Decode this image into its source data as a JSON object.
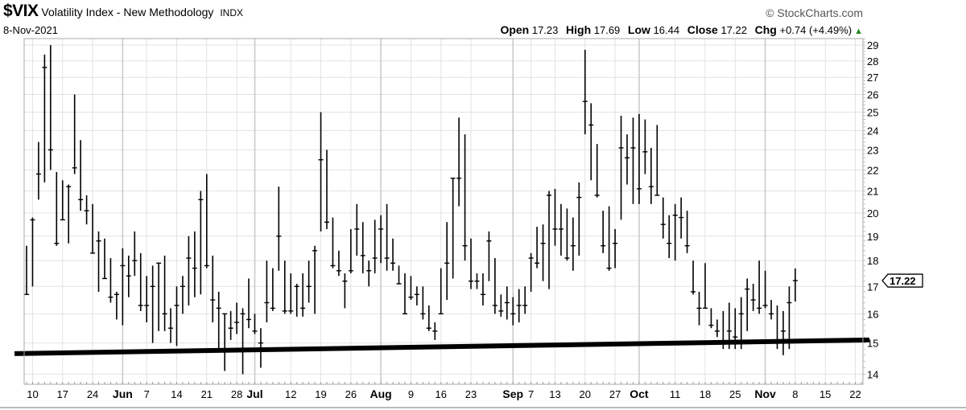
{
  "header": {
    "symbol": "$VIX",
    "name": "Volatility Index - New Methodology",
    "exchange": "INDX",
    "date": "8-Nov-2021",
    "copyright": "© StockCharts.com",
    "open_label": "Open",
    "open": "17.23",
    "high_label": "High",
    "high": "17.69",
    "low_label": "Low",
    "low": "16.44",
    "close_label": "Close",
    "close": "17.22",
    "chg_label": "Chg",
    "chg": "+0.74 (+4.49%)",
    "chg_icon": "triangle-up-icon",
    "chg_color": "#2a8a2a"
  },
  "chart_data": {
    "type": "ohlc",
    "yscale": "log",
    "ylim": [
      13.69,
      29.42
    ],
    "grid": true,
    "bar_color": "#000000",
    "last_price_tag": "17.22",
    "y_ticks": [
      "14",
      "15",
      "16",
      "17",
      "18",
      "19",
      "20",
      "21",
      "22",
      "23",
      "24",
      "25",
      "26",
      "27",
      "28",
      "29"
    ],
    "x_ticks": [
      {
        "date": "2021-05-10",
        "label": "10"
      },
      {
        "date": "2021-05-17",
        "label": "17"
      },
      {
        "date": "2021-05-24",
        "label": "24"
      },
      {
        "date": "2021-06-01",
        "label": "Jun",
        "month": true
      },
      {
        "date": "2021-06-07",
        "label": "7"
      },
      {
        "date": "2021-06-14",
        "label": "14"
      },
      {
        "date": "2021-06-21",
        "label": "21"
      },
      {
        "date": "2021-06-28",
        "label": "28"
      },
      {
        "date": "2021-07-01",
        "label": "Jul",
        "month": true
      },
      {
        "date": "2021-07-12",
        "label": "12"
      },
      {
        "date": "2021-07-19",
        "label": "19"
      },
      {
        "date": "2021-07-26",
        "label": "26"
      },
      {
        "date": "2021-08-02",
        "label": "Aug",
        "month": true
      },
      {
        "date": "2021-08-09",
        "label": "9"
      },
      {
        "date": "2021-08-16",
        "label": "16"
      },
      {
        "date": "2021-08-23",
        "label": "23"
      },
      {
        "date": "2021-09-01",
        "label": "Sep",
        "month": true
      },
      {
        "date": "2021-09-07",
        "label": "7"
      },
      {
        "date": "2021-09-13",
        "label": "13"
      },
      {
        "date": "2021-09-20",
        "label": "20"
      },
      {
        "date": "2021-09-27",
        "label": "27"
      },
      {
        "date": "2021-10-01",
        "label": "Oct",
        "month": true
      },
      {
        "date": "2021-10-11",
        "label": "11"
      },
      {
        "date": "2021-10-18",
        "label": "18"
      },
      {
        "date": "2021-10-25",
        "label": "25"
      },
      {
        "date": "2021-11-01",
        "label": "Nov",
        "month": true
      },
      {
        "date": "2021-11-08",
        "label": "8"
      },
      {
        "date": "2021-11-15",
        "label": "15"
      },
      {
        "date": "2021-11-22",
        "label": "22"
      }
    ],
    "trendline": {
      "start_value": 14.65,
      "end_value": 15.1,
      "color": "#000000"
    },
    "bars_fields": [
      "date",
      "high",
      "low",
      "close"
    ],
    "bars": [
      [
        "2021-05-07",
        18.6,
        16.7,
        16.7
      ],
      [
        "2021-05-10",
        19.8,
        17.0,
        19.7
      ],
      [
        "2021-05-11",
        23.4,
        20.6,
        21.8
      ],
      [
        "2021-05-12",
        28.4,
        21.4,
        27.6
      ],
      [
        "2021-05-13",
        29.0,
        22.0,
        23.0
      ],
      [
        "2021-05-14",
        21.9,
        18.6,
        18.7
      ],
      [
        "2021-05-17",
        21.5,
        19.7,
        19.7
      ],
      [
        "2021-05-18",
        21.3,
        18.7,
        21.2
      ],
      [
        "2021-05-19",
        26.0,
        21.8,
        22.1
      ],
      [
        "2021-05-20",
        23.5,
        20.1,
        20.6
      ],
      [
        "2021-05-21",
        20.8,
        19.5,
        20.1
      ],
      [
        "2021-05-24",
        20.4,
        18.3,
        18.3
      ],
      [
        "2021-05-25",
        19.2,
        16.8,
        18.8
      ],
      [
        "2021-05-26",
        18.9,
        17.3,
        17.3
      ],
      [
        "2021-05-27",
        18.1,
        16.4,
        16.6
      ],
      [
        "2021-05-28",
        16.8,
        15.8,
        16.7
      ],
      [
        "2021-06-01",
        18.5,
        15.6,
        17.8
      ],
      [
        "2021-06-02",
        18.2,
        16.6,
        17.4
      ],
      [
        "2021-06-03",
        19.2,
        17.4,
        18.0
      ],
      [
        "2021-06-04",
        18.3,
        16.1,
        16.3
      ],
      [
        "2021-06-07",
        17.4,
        15.7,
        16.3
      ],
      [
        "2021-06-08",
        17.8,
        15.0,
        17.0
      ],
      [
        "2021-06-09",
        17.9,
        15.4,
        17.9
      ],
      [
        "2021-06-10",
        18.2,
        15.4,
        16.0
      ],
      [
        "2021-06-11",
        16.2,
        15.0,
        15.5
      ],
      [
        "2021-06-14",
        17.0,
        14.9,
        16.3
      ],
      [
        "2021-06-15",
        17.4,
        16.0,
        17.0
      ],
      [
        "2021-06-16",
        19.0,
        16.3,
        18.1
      ],
      [
        "2021-06-17",
        19.2,
        16.6,
        17.7
      ],
      [
        "2021-06-18",
        21.0,
        16.7,
        20.6
      ],
      [
        "2021-06-21",
        21.8,
        17.7,
        17.8
      ],
      [
        "2021-06-22",
        18.2,
        15.7,
        16.5
      ],
      [
        "2021-06-23",
        16.8,
        14.8,
        16.2
      ],
      [
        "2021-06-24",
        16.0,
        14.1,
        16.0
      ],
      [
        "2021-06-25",
        16.1,
        15.1,
        15.5
      ],
      [
        "2021-06-28",
        16.4,
        15.3,
        15.7
      ],
      [
        "2021-06-29",
        16.2,
        14.0,
        16.0
      ],
      [
        "2021-06-30",
        17.3,
        15.5,
        15.8
      ],
      [
        "2021-07-01",
        16.0,
        15.3,
        15.4
      ],
      [
        "2021-07-02",
        15.5,
        14.2,
        15.0
      ],
      [
        "2021-07-06",
        18.0,
        15.7,
        16.4
      ],
      [
        "2021-07-07",
        17.7,
        16.1,
        16.2
      ],
      [
        "2021-07-08",
        21.2,
        17.6,
        19.0
      ],
      [
        "2021-07-09",
        18.0,
        16.0,
        16.1
      ],
      [
        "2021-07-12",
        17.5,
        16.0,
        16.1
      ],
      [
        "2021-07-13",
        17.1,
        15.9,
        17.0
      ],
      [
        "2021-07-14",
        17.5,
        15.9,
        16.2
      ],
      [
        "2021-07-15",
        18.0,
        16.4,
        17.0
      ],
      [
        "2021-07-16",
        18.6,
        16.0,
        18.4
      ],
      [
        "2021-07-19",
        25.0,
        19.2,
        22.5
      ],
      [
        "2021-07-20",
        23.0,
        19.3,
        19.6
      ],
      [
        "2021-07-21",
        19.8,
        17.7,
        17.8
      ],
      [
        "2021-07-22",
        18.4,
        17.4,
        17.6
      ],
      [
        "2021-07-23",
        17.5,
        16.2,
        17.2
      ],
      [
        "2021-07-26",
        19.3,
        17.5,
        17.6
      ],
      [
        "2021-07-27",
        20.4,
        18.2,
        19.3
      ],
      [
        "2021-07-28",
        19.6,
        17.5,
        18.2
      ],
      [
        "2021-07-29",
        18.0,
        17.0,
        17.6
      ],
      [
        "2021-07-30",
        19.7,
        17.5,
        18.1
      ],
      [
        "2021-08-02",
        19.9,
        17.9,
        19.3
      ],
      [
        "2021-08-03",
        20.4,
        17.6,
        18.1
      ],
      [
        "2021-08-04",
        18.9,
        17.6,
        17.9
      ],
      [
        "2021-08-05",
        17.8,
        17.1,
        17.1
      ],
      [
        "2021-08-06",
        17.5,
        16.0,
        16.0
      ],
      [
        "2021-08-09",
        17.4,
        16.5,
        16.6
      ],
      [
        "2021-08-10",
        17.0,
        16.3,
        16.7
      ],
      [
        "2021-08-11",
        17.0,
        15.8,
        16.0
      ],
      [
        "2021-08-12",
        16.3,
        15.4,
        15.5
      ],
      [
        "2021-08-13",
        15.7,
        15.1,
        15.4
      ],
      [
        "2021-08-16",
        17.7,
        16.0,
        16.0
      ],
      [
        "2021-08-17",
        19.6,
        16.5,
        17.9
      ],
      [
        "2021-08-18",
        21.6,
        17.3,
        21.6
      ],
      [
        "2021-08-19",
        24.7,
        20.3,
        21.6
      ],
      [
        "2021-08-20",
        23.8,
        18.0,
        18.6
      ],
      [
        "2021-08-23",
        18.9,
        16.9,
        17.2
      ],
      [
        "2021-08-24",
        17.5,
        16.9,
        17.2
      ],
      [
        "2021-08-25",
        17.5,
        16.3,
        16.7
      ],
      [
        "2021-08-26",
        19.2,
        17.2,
        18.8
      ],
      [
        "2021-08-27",
        18.1,
        16.0,
        16.3
      ],
      [
        "2021-08-30",
        16.7,
        15.9,
        16.1
      ],
      [
        "2021-08-31",
        17.0,
        15.8,
        16.4
      ],
      [
        "2021-09-01",
        16.6,
        15.6,
        16.0
      ],
      [
        "2021-09-02",
        16.9,
        15.7,
        16.3
      ],
      [
        "2021-09-03",
        17.0,
        16.0,
        16.3
      ],
      [
        "2021-09-07",
        18.3,
        16.8,
        18.1
      ],
      [
        "2021-09-08",
        19.4,
        17.7,
        17.9
      ],
      [
        "2021-09-09",
        19.5,
        17.2,
        18.7
      ],
      [
        "2021-09-10",
        21.0,
        16.9,
        20.8
      ],
      [
        "2021-09-13",
        21.1,
        18.6,
        19.3
      ],
      [
        "2021-09-14",
        20.4,
        18.2,
        19.3
      ],
      [
        "2021-09-15",
        20.2,
        18.0,
        18.1
      ],
      [
        "2021-09-16",
        19.8,
        17.6,
        18.6
      ],
      [
        "2021-09-17",
        21.4,
        18.2,
        20.7
      ],
      [
        "2021-09-20",
        28.7,
        23.8,
        25.6
      ],
      [
        "2021-09-21",
        25.5,
        21.5,
        24.3
      ],
      [
        "2021-09-22",
        23.3,
        20.7,
        20.8
      ],
      [
        "2021-09-23",
        20.1,
        18.3,
        18.6
      ],
      [
        "2021-09-24",
        20.3,
        17.6,
        17.7
      ],
      [
        "2021-09-27",
        19.3,
        17.7,
        18.7
      ],
      [
        "2021-09-28",
        24.8,
        19.7,
        23.1
      ],
      [
        "2021-09-29",
        23.8,
        21.3,
        22.6
      ],
      [
        "2021-09-30",
        24.7,
        20.4,
        23.1
      ],
      [
        "2021-10-01",
        24.9,
        20.4,
        21.1
      ],
      [
        "2021-10-04",
        24.6,
        21.8,
        22.9
      ],
      [
        "2021-10-05",
        23.1,
        20.4,
        21.2
      ],
      [
        "2021-10-06",
        24.3,
        20.8,
        20.8
      ],
      [
        "2021-10-07",
        20.7,
        18.9,
        19.5
      ],
      [
        "2021-10-08",
        19.9,
        18.1,
        18.7
      ],
      [
        "2021-10-11",
        20.4,
        18.0,
        19.9
      ],
      [
        "2021-10-12",
        20.7,
        18.9,
        19.8
      ],
      [
        "2021-10-13",
        20.1,
        18.3,
        18.6
      ],
      [
        "2021-10-14",
        18.0,
        16.7,
        16.8
      ],
      [
        "2021-10-15",
        16.8,
        15.6,
        16.2
      ],
      [
        "2021-10-18",
        17.9,
        16.2,
        16.2
      ],
      [
        "2021-10-19",
        16.2,
        15.5,
        15.6
      ],
      [
        "2021-10-20",
        15.8,
        15.2,
        15.4
      ],
      [
        "2021-10-21",
        16.1,
        14.8,
        15.0
      ],
      [
        "2021-10-22",
        16.4,
        14.8,
        15.4
      ],
      [
        "2021-10-25",
        16.2,
        14.8,
        15.2
      ],
      [
        "2021-10-26",
        16.6,
        14.8,
        16.0
      ],
      [
        "2021-10-27",
        17.3,
        15.4,
        16.9
      ],
      [
        "2021-10-28",
        17.1,
        16.1,
        16.5
      ],
      [
        "2021-10-29",
        18.0,
        16.0,
        16.2
      ],
      [
        "2021-11-01",
        17.6,
        16.2,
        16.3
      ],
      [
        "2021-11-02",
        16.5,
        15.8,
        16.0
      ],
      [
        "2021-11-03",
        16.3,
        14.8,
        15.0
      ],
      [
        "2021-11-04",
        16.1,
        14.6,
        15.4
      ],
      [
        "2021-11-05",
        17.0,
        14.8,
        16.4
      ],
      [
        "2021-11-08",
        17.69,
        16.44,
        17.22
      ]
    ]
  }
}
